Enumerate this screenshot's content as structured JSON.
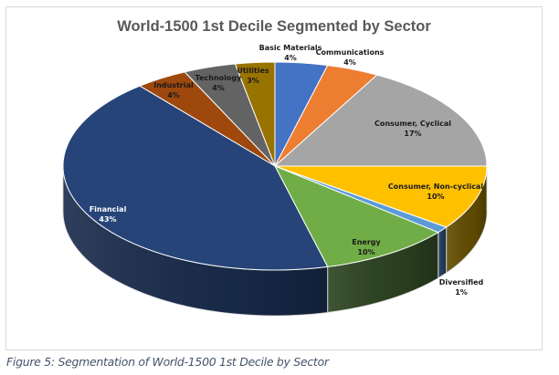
{
  "chart_data": {
    "type": "pie",
    "style": "3d-pie",
    "title": "World-1500 1st Decile Segmented by Sector",
    "start": "top, clockwise",
    "slices": [
      {
        "label": "Basic Materials",
        "value": 4,
        "display": "4%",
        "color": "#4472c4",
        "side": "#2f5597",
        "text_color": "#1a1a1a"
      },
      {
        "label": "Communications",
        "value": 4,
        "display": "4%",
        "color": "#ed7d31",
        "side": "#a55420",
        "text_color": "#1a1a1a"
      },
      {
        "label": "Consumer, Cyclical",
        "value": 17,
        "display": "17%",
        "color": "#a5a5a5",
        "side": "#6e6e6e",
        "text_color": "#1a1a1a"
      },
      {
        "label": "Consumer, Non-cyclical",
        "value": 10,
        "display": "10%",
        "color": "#ffc000",
        "side": "#614c00",
        "text_color": "#1a1a1a"
      },
      {
        "label": "Diversified",
        "value": 1,
        "display": "1%",
        "color": "#5b9bd5",
        "side": "#213c57",
        "text_color": "#1a1a1a"
      },
      {
        "label": "Energy",
        "value": 10,
        "display": "10%",
        "color": "#70ad47",
        "side": "#2b4120",
        "text_color": "#1a1a1a"
      },
      {
        "label": "Financial",
        "value": 43,
        "display": "43%",
        "color": "#264478",
        "side": "#172a4a",
        "text_color": "#ffffff"
      },
      {
        "label": "Industrial",
        "value": 4,
        "display": "4%",
        "color": "#9e480e",
        "side": "#6a3009",
        "text_color": "#1a1a1a"
      },
      {
        "label": "Technology",
        "value": 4,
        "display": "4%",
        "color": "#636363",
        "side": "#404040",
        "text_color": "#1a1a1a"
      },
      {
        "label": "Utilities",
        "value": 3,
        "display": "3%",
        "color": "#997300",
        "side": "#5e4700",
        "text_color": "#1a1a1a"
      }
    ],
    "legend": "none",
    "data_labels": "category name and percentage"
  },
  "caption": "Figure 5: Segmentation of World-1500 1st Decile by Sector"
}
